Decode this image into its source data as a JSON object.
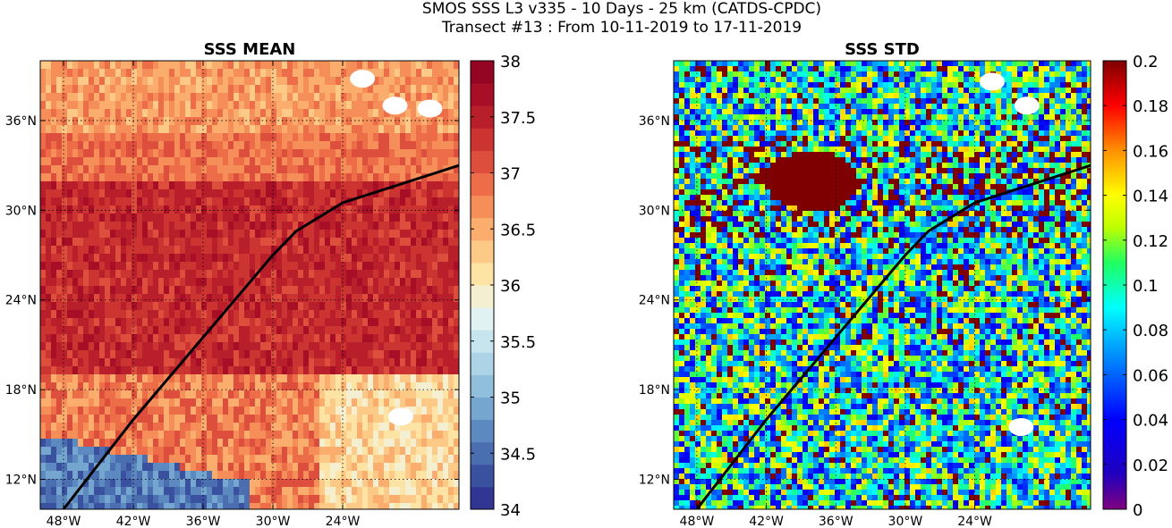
{
  "figure": {
    "title_line1": "SMOS SSS L3 v335 - 10 Days - 25 km (CATDS-CPDC)",
    "title_line2": "Transect #13 : From 10-11-2019 to 17-11-2019"
  },
  "chart_data": [
    {
      "type": "heatmap",
      "title": "SSS MEAN",
      "xlabel": "",
      "ylabel": "",
      "xlim": [
        -50,
        -14
      ],
      "ylim": [
        10,
        40
      ],
      "grid": true,
      "grid_style": "dotted",
      "x_ticks": [
        -48,
        -42,
        -36,
        -30,
        -24
      ],
      "x_tick_labels": [
        "48°W",
        "42°W",
        "36°W",
        "30°W",
        "24°W"
      ],
      "y_ticks": [
        12,
        18,
        24,
        30,
        36
      ],
      "y_tick_labels": [
        "12°N",
        "18°N",
        "24°N",
        "30°N",
        "36°N"
      ],
      "colorbar": {
        "range": [
          34,
          38
        ],
        "ticks": [
          34,
          34.5,
          35,
          35.5,
          36,
          36.5,
          37,
          37.5,
          38
        ],
        "tick_labels": [
          "34",
          "34.5",
          "35",
          "35.5",
          "36",
          "36.5",
          "37",
          "37.5",
          "38"
        ],
        "colormap": "RdYlBu_r (discrete, 20 steps)"
      },
      "field_pattern": {
        "north_band_36_40N": 36.6,
        "core_20_32N": 37.4,
        "southwest_below_15N": 34.6,
        "southeast_below_20N": 36.2
      },
      "missing_data_regions": [
        {
          "lon": -19.5,
          "lat": 37.0
        },
        {
          "lon": -16.5,
          "lat": 36.8
        },
        {
          "lon": -19.0,
          "lat": 16.2
        },
        {
          "lon": -22.3,
          "lat": 38.8
        }
      ],
      "transect": {
        "lon": [
          -48,
          -42,
          -36,
          -30,
          -28,
          -24,
          -14
        ],
        "lat": [
          10,
          16,
          21.5,
          27,
          28.6,
          30.5,
          33
        ]
      }
    },
    {
      "type": "heatmap",
      "title": "SSS STD",
      "xlabel": "",
      "ylabel": "",
      "xlim": [
        -50,
        -14
      ],
      "ylim": [
        10,
        40
      ],
      "grid": true,
      "grid_style": "dotted",
      "x_ticks": [
        -48,
        -42,
        -36,
        -30,
        -24
      ],
      "x_tick_labels": [
        "48°W",
        "42°W",
        "36°W",
        "30°W",
        "24°W"
      ],
      "y_ticks": [
        12,
        18,
        24,
        30,
        36
      ],
      "y_tick_labels": [
        "12°N",
        "18°N",
        "24°N",
        "30°N",
        "36°N"
      ],
      "colorbar": {
        "range": [
          0,
          0.2
        ],
        "ticks": [
          0,
          0.02,
          0.04,
          0.06,
          0.08,
          0.1,
          0.12,
          0.14,
          0.16,
          0.18,
          0.2
        ],
        "tick_labels": [
          "0",
          "0.02",
          "0.04",
          "0.06",
          "0.08",
          "0.1",
          "0.12",
          "0.14",
          "0.16",
          "0.18",
          "0.2"
        ],
        "colormap": "jet (continuous)"
      },
      "field_pattern": {
        "background_typical": 0.09,
        "high_variability_patch_lon_lat": [
          -38,
          32
        ],
        "high_variability_value": 0.2
      },
      "missing_data_regions": [
        {
          "lon": -22.5,
          "lat": 38.6
        },
        {
          "lon": -19.5,
          "lat": 37.0
        },
        {
          "lon": -20.0,
          "lat": 15.5
        }
      ],
      "transect": {
        "lon": [
          -48,
          -42,
          -36,
          -30,
          -28,
          -24,
          -14
        ],
        "lat": [
          10,
          16,
          21.5,
          27,
          28.6,
          30.5,
          33
        ]
      }
    }
  ]
}
